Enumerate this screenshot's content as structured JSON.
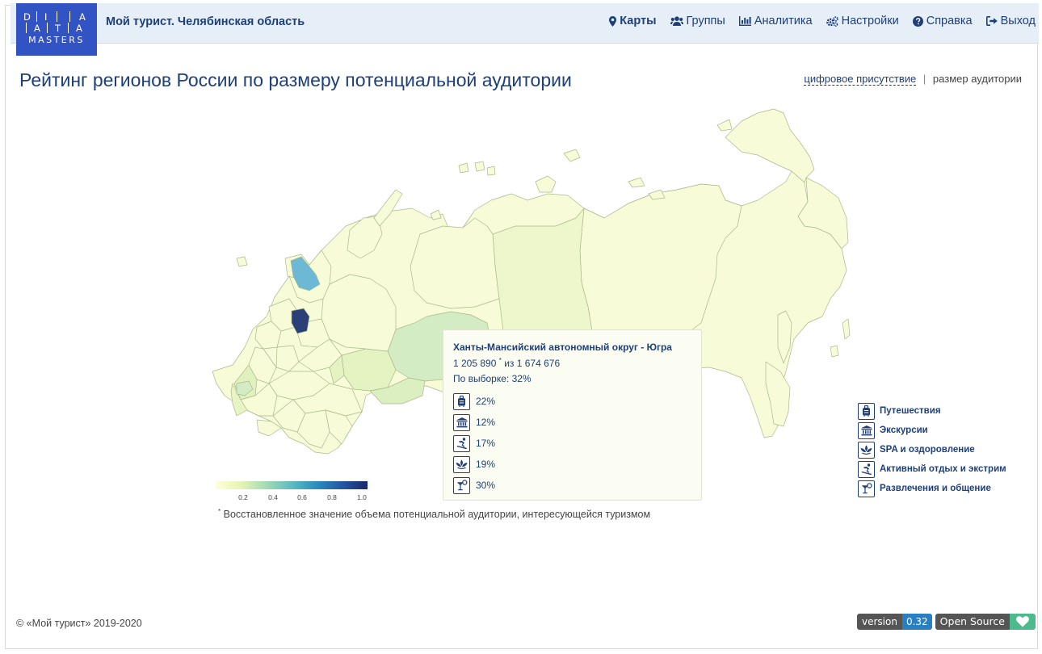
{
  "header": {
    "logo_rows": [
      [
        "D",
        "I",
        "A",
        "A"
      ],
      [
        "A",
        "T"
      ],
      [
        "MASTERS"
      ]
    ],
    "app_title": "Мой турист. Челябинская область",
    "nav": [
      {
        "label": "Карты",
        "icon": "map-marker-icon",
        "active": true
      },
      {
        "label": "Группы",
        "icon": "users-icon",
        "active": false
      },
      {
        "label": "Аналитика",
        "icon": "bar-chart-icon",
        "active": false
      },
      {
        "label": "Настройки",
        "icon": "cogs-icon",
        "active": false
      },
      {
        "label": "Справка",
        "icon": "question-circle-icon",
        "active": false
      },
      {
        "label": "Выход",
        "icon": "sign-out-icon",
        "active": false
      }
    ]
  },
  "page": {
    "title": "Рейтинг регионов России по размеру потенциальной аудитории",
    "view_switch": {
      "option_digital": "цифровое присутствие",
      "separator": "|",
      "option_audience": "размер аудитории"
    }
  },
  "map": {
    "color_scale": {
      "colors": [
        "#ffffd9",
        "#1a2a6c"
      ],
      "ticks": [
        "0.2",
        "0.4",
        "0.6",
        "0.8",
        "1.0"
      ]
    },
    "highlight_colors": {
      "dark_region": "#2b3f78",
      "blue_region": "#6db8d4",
      "light_green": "#d6eebb",
      "base": "#f7fbd8"
    }
  },
  "tooltip": {
    "region": "Ханты-Мансийский автономный округ - Югра",
    "count": "1 205 890",
    "count_mark": "*",
    "count_suffix": "из 1 674 676",
    "sample": "По выборке: 32%",
    "items": [
      {
        "icon": "suitcase-icon",
        "value": "22%"
      },
      {
        "icon": "museum-icon",
        "value": "12%"
      },
      {
        "icon": "snowboarder-icon",
        "value": "17%"
      },
      {
        "icon": "lotus-icon",
        "value": "19%"
      },
      {
        "icon": "cocktail-icon",
        "value": "30%"
      }
    ]
  },
  "legend": [
    {
      "icon": "suitcase-icon",
      "label": "Путешествия"
    },
    {
      "icon": "museum-icon",
      "label": "Экскурсии"
    },
    {
      "icon": "lotus-icon",
      "label": "SPA и оздоровление"
    },
    {
      "icon": "snowboarder-icon",
      "label": "Активный отдых и экстрим"
    },
    {
      "icon": "cocktail-icon",
      "label": "Развлечения и общение"
    }
  ],
  "footnote": {
    "mark": "*",
    "text": "Восстановленное значение объема потенциальной аудитории, интересующейся туризмом"
  },
  "footer": {
    "copyright": "© «Мой турист» 2019-2020",
    "version_key": "version",
    "version_value": "0.32",
    "opensource_label": "Open Source"
  }
}
